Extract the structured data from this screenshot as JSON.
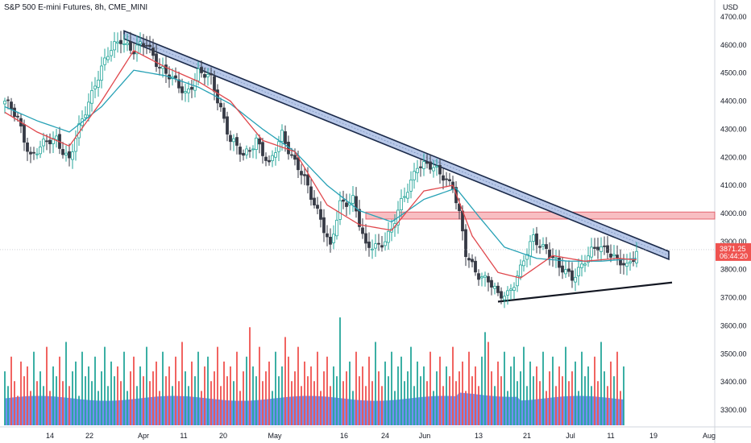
{
  "header": {
    "title": "S&P 500 E-mini Futures, 8h, CME_MINI"
  },
  "chart_data": {
    "type": "candlestick",
    "title": "S&P 500 E-mini Futures, 8h, CME_MINI",
    "currency": "USD",
    "y_range": [
      3240,
      4760
    ],
    "y_ticks": [
      3300,
      3400,
      3500,
      3600,
      3700,
      3800,
      3900,
      4000,
      4100,
      4200,
      4300,
      4400,
      4500,
      4600,
      4700
    ],
    "x_ticks": [
      "14",
      "22",
      "Apr",
      "11",
      "20",
      "May",
      "16",
      "24",
      "Jun",
      "13",
      "21",
      "Jul",
      "11",
      "19",
      "Aug"
    ],
    "last_price": "3871.25",
    "countdown": "06:44:20",
    "price_path": [
      [
        0,
        4400
      ],
      [
        4,
        4330
      ],
      [
        8,
        4210
      ],
      [
        12,
        4240
      ],
      [
        16,
        4270
      ],
      [
        20,
        4190
      ],
      [
        24,
        4330
      ],
      [
        28,
        4470
      ],
      [
        32,
        4560
      ],
      [
        36,
        4625
      ],
      [
        40,
        4580
      ],
      [
        44,
        4600
      ],
      [
        48,
        4530
      ],
      [
        52,
        4470
      ],
      [
        56,
        4430
      ],
      [
        60,
        4500
      ],
      [
        64,
        4475
      ],
      [
        67,
        4380
      ],
      [
        70,
        4260
      ],
      [
        74,
        4200
      ],
      [
        78,
        4270
      ],
      [
        82,
        4160
      ],
      [
        86,
        4290
      ],
      [
        90,
        4180
      ],
      [
        94,
        4090
      ],
      [
        98,
        3990
      ],
      [
        101,
        3870
      ],
      [
        104,
        4030
      ],
      [
        108,
        4060
      ],
      [
        112,
        3870
      ],
      [
        116,
        3890
      ],
      [
        120,
        3940
      ],
      [
        124,
        4060
      ],
      [
        128,
        4180
      ],
      [
        132,
        4160
      ],
      [
        136,
        4140
      ],
      [
        139,
        4100
      ],
      [
        141,
        3990
      ],
      [
        143,
        3850
      ],
      [
        146,
        3800
      ],
      [
        150,
        3760
      ],
      [
        153,
        3700
      ],
      [
        156,
        3720
      ],
      [
        160,
        3800
      ],
      [
        164,
        3910
      ],
      [
        168,
        3880
      ],
      [
        172,
        3800
      ],
      [
        176,
        3780
      ],
      [
        180,
        3830
      ],
      [
        184,
        3880
      ],
      [
        187,
        3880
      ],
      [
        190,
        3830
      ],
      [
        193,
        3800
      ],
      [
        196,
        3871
      ]
    ],
    "ema_fast": [
      [
        0,
        4360
      ],
      [
        10,
        4290
      ],
      [
        20,
        4240
      ],
      [
        30,
        4400
      ],
      [
        40,
        4580
      ],
      [
        50,
        4520
      ],
      [
        60,
        4470
      ],
      [
        70,
        4400
      ],
      [
        80,
        4260
      ],
      [
        90,
        4220
      ],
      [
        100,
        4030
      ],
      [
        110,
        3960
      ],
      [
        120,
        3940
      ],
      [
        130,
        4080
      ],
      [
        139,
        4100
      ],
      [
        145,
        3920
      ],
      [
        153,
        3790
      ],
      [
        160,
        3770
      ],
      [
        170,
        3850
      ],
      [
        180,
        3830
      ],
      [
        190,
        3840
      ],
      [
        196,
        3835
      ]
    ],
    "ema_slow": [
      [
        0,
        4380
      ],
      [
        10,
        4330
      ],
      [
        20,
        4290
      ],
      [
        30,
        4380
      ],
      [
        40,
        4510
      ],
      [
        50,
        4490
      ],
      [
        60,
        4450
      ],
      [
        70,
        4390
      ],
      [
        80,
        4300
      ],
      [
        90,
        4220
      ],
      [
        100,
        4100
      ],
      [
        110,
        4010
      ],
      [
        120,
        3970
      ],
      [
        130,
        4050
      ],
      [
        140,
        4090
      ],
      [
        147,
        3990
      ],
      [
        155,
        3880
      ],
      [
        165,
        3840
      ],
      [
        175,
        3830
      ],
      [
        185,
        3830
      ],
      [
        196,
        3840
      ]
    ],
    "resistance_zone": {
      "x_start": 112,
      "x_end": 220,
      "y_low": 3980,
      "y_high": 4005
    },
    "descending_channel": {
      "x1": 37,
      "y1": 4650,
      "x2": 206,
      "y2": 3865,
      "width": 22
    },
    "support_line": {
      "x1": 153,
      "y1": 3686,
      "x2": 207,
      "y2": 3754
    },
    "volume": [
      110,
      80,
      140,
      90,
      60,
      130,
      100,
      120,
      70,
      150,
      90,
      110,
      80,
      160,
      70,
      120,
      100,
      140,
      90,
      170,
      80,
      110,
      130,
      60,
      150,
      100,
      120,
      90,
      140,
      70,
      110,
      160,
      80,
      130,
      100,
      120,
      90,
      150,
      70,
      110,
      140,
      80,
      120,
      100,
      160,
      90,
      110,
      130,
      70,
      150,
      100,
      120,
      80,
      140,
      90,
      170,
      110,
      80,
      130,
      100,
      150,
      70,
      120,
      140,
      90,
      110,
      160,
      80,
      130,
      100,
      120,
      90,
      150,
      70,
      110,
      140,
      200,
      120,
      100,
      160,
      90,
      110,
      130,
      70,
      150,
      100,
      120,
      180,
      140,
      90,
      110,
      160,
      80,
      130,
      100,
      120,
      90,
      150,
      70,
      110,
      140,
      80,
      120,
      100,
      220,
      90,
      110,
      130,
      70,
      150,
      100,
      120,
      80,
      140,
      90,
      170,
      110,
      80,
      130,
      100,
      150,
      70,
      120,
      140,
      90,
      110,
      160,
      80,
      130,
      100,
      120,
      90,
      150,
      70,
      110,
      140,
      80,
      120,
      100,
      160,
      90,
      110,
      130,
      70,
      150,
      100,
      120,
      80,
      140,
      190,
      170,
      110,
      80,
      130,
      100,
      150,
      70,
      120,
      140,
      90,
      110,
      160,
      80,
      130,
      100,
      120,
      90,
      150,
      70,
      110,
      140,
      80,
      120,
      100,
      160,
      90,
      110,
      130,
      70,
      150,
      100,
      120,
      80,
      140,
      90,
      170,
      110,
      80,
      130,
      100,
      150,
      70,
      120
    ]
  },
  "colors": {
    "up": "#26a69a",
    "down": "#ef5350",
    "ema_fast": "#e0474c",
    "ema_slow": "#26a1b5",
    "volume_area": "#5b7bf0",
    "channel_fill": "#b8c8e8",
    "channel_edge": "#1b2a4a",
    "zone_fill": "#f7b3b8",
    "zone_edge": "#e04b57",
    "price_tag": "#ef5350"
  }
}
